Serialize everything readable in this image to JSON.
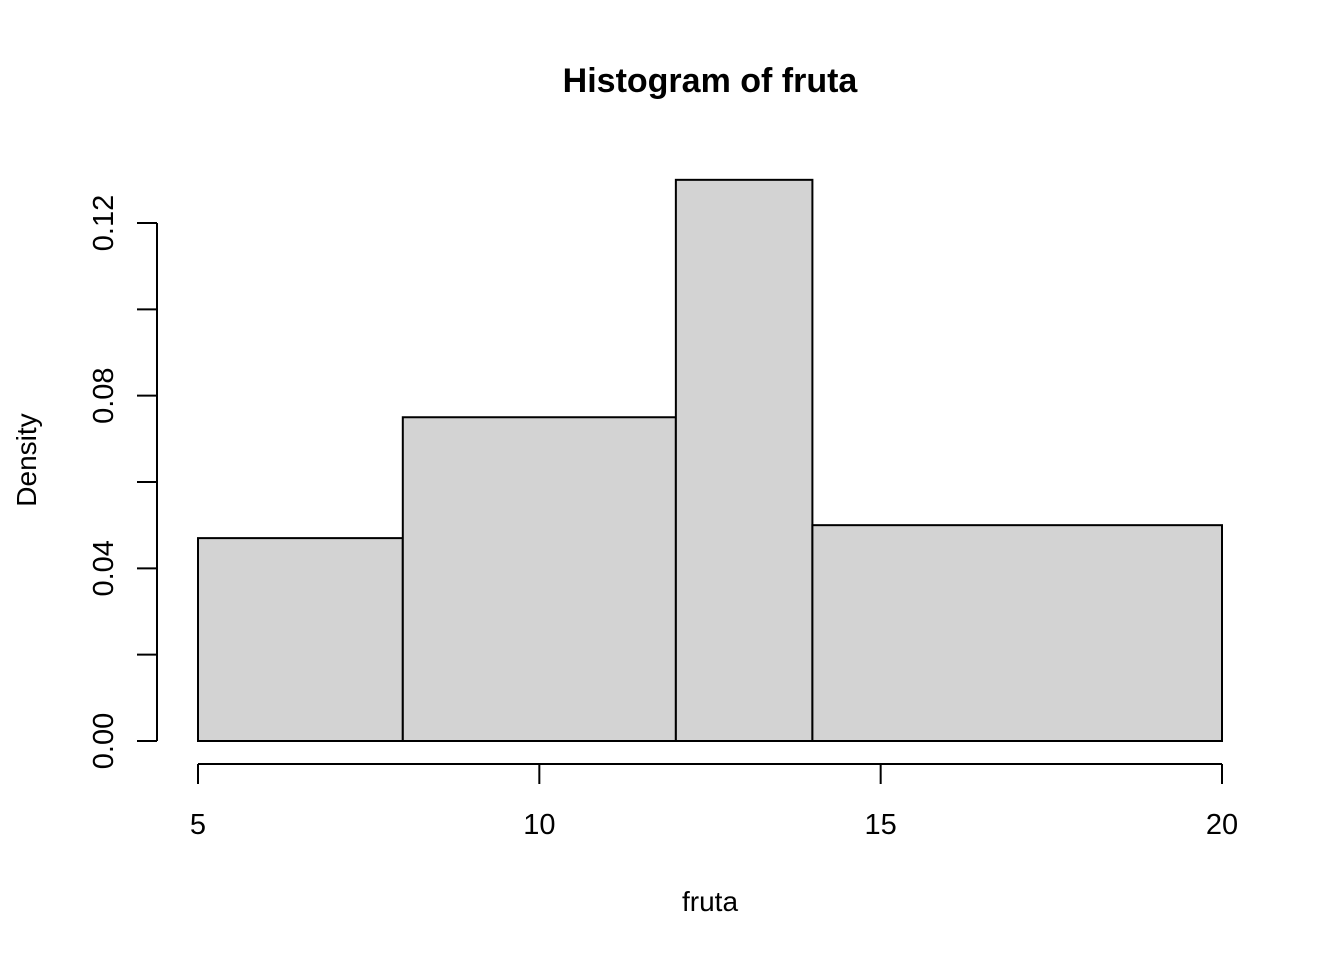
{
  "chart_data": {
    "type": "bar",
    "histogram": true,
    "title": "Histogram of fruta",
    "xlabel": "fruta",
    "ylabel": "Density",
    "bins": [
      {
        "from": 5,
        "to": 8,
        "density": 0.047
      },
      {
        "from": 8,
        "to": 12,
        "density": 0.075
      },
      {
        "from": 12,
        "to": 14,
        "density": 0.13
      },
      {
        "from": 14,
        "to": 20,
        "density": 0.05
      }
    ],
    "x_ticks": [
      5,
      10,
      15,
      20
    ],
    "x_tick_labels": [
      "5",
      "10",
      "15",
      "20"
    ],
    "y_ticks": [
      0,
      0.02,
      0.04,
      0.06,
      0.08,
      0.1,
      0.12
    ],
    "y_tick_labels": [
      "0.00",
      "",
      "0.04",
      "",
      "0.08",
      "",
      "0.12"
    ],
    "xlim": [
      5,
      20
    ],
    "ylim": [
      0,
      0.12
    ],
    "grid": false,
    "bar_fill": "#d3d3d3",
    "bar_stroke": "#000000"
  }
}
